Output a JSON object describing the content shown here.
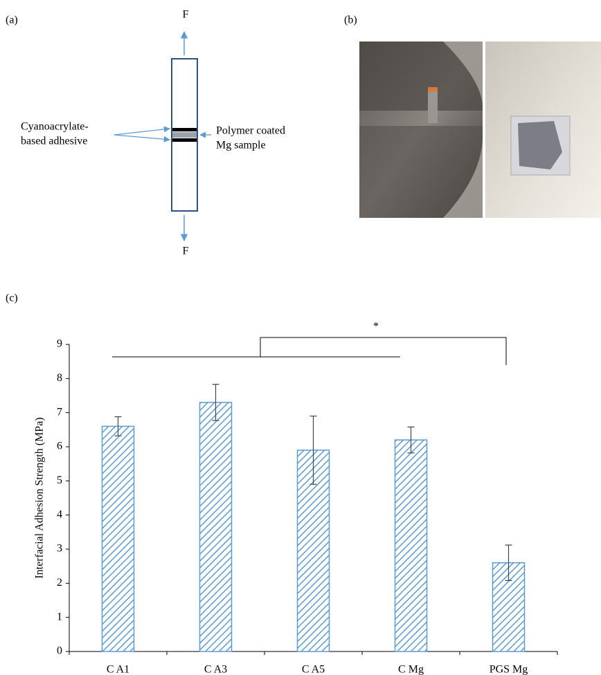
{
  "panel_a": {
    "label": "(a)",
    "force_top": "F",
    "force_bottom": "F",
    "left_label": [
      "Cyanoacrylate-",
      "based adhesive"
    ],
    "right_label": [
      "Polymer coated",
      "Mg sample"
    ]
  },
  "panel_b": {
    "label": "(b)"
  },
  "panel_c": {
    "label": "(c)",
    "significance": "*"
  },
  "chart_data": {
    "type": "bar",
    "y_label": "Interfacial Adhesion Strength (MPa)",
    "categories": [
      "C A1",
      "C A3",
      "C A5",
      "C Mg",
      "PGS Mg"
    ],
    "values": [
      6.6,
      7.3,
      5.9,
      6.2,
      2.6
    ],
    "errors": [
      0.28,
      0.53,
      1.0,
      0.38,
      0.52
    ],
    "color": "#5b9bd5",
    "ylim": [
      0,
      9
    ],
    "yticks": [
      0,
      1,
      2,
      3,
      4,
      5,
      6,
      7,
      8,
      9
    ]
  }
}
